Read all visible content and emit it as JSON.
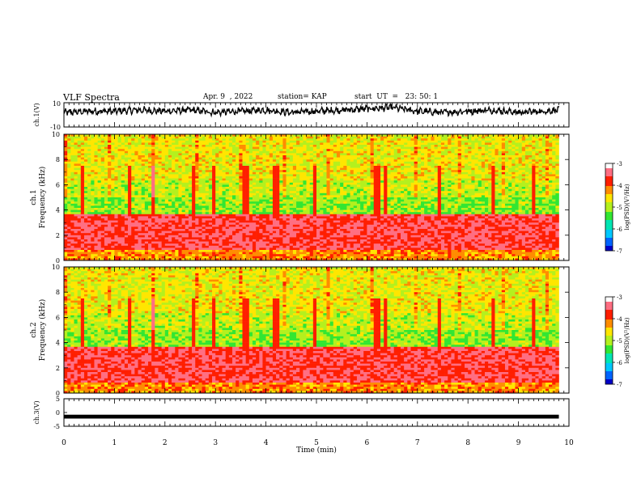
{
  "header": {
    "title": "VLF Spectra",
    "date": "Apr. 9  , 2022",
    "station": "station= KAP",
    "start_ut": "start  UT  =   23: 50: 1"
  },
  "colors": {
    "spectrogram_colormap": [
      "#0000c8",
      "#0064ff",
      "#00c8ff",
      "#00e6b4",
      "#32e632",
      "#b4f01e",
      "#ffe600",
      "#ff8c00",
      "#ff1e00",
      "#ff6e82",
      "#ffffff"
    ],
    "trace": "#000000",
    "frame": "#000000"
  },
  "chart_data": [
    {
      "type": "line",
      "name": "ch1-waveform",
      "ylabel": "ch.1(V)",
      "ylim": [
        -10,
        10
      ],
      "y_ticks": [
        "10",
        "-10"
      ],
      "xlim": [
        0,
        10
      ],
      "x": [
        0.0,
        0.5,
        1.0,
        1.5,
        2.0,
        2.5,
        3.0,
        3.5,
        4.0,
        4.5,
        5.0,
        5.5,
        6.0,
        6.5,
        7.0,
        7.5,
        8.0,
        8.5,
        9.0,
        9.5,
        9.8
      ],
      "y": [
        2,
        3,
        3,
        4,
        3,
        4,
        2,
        3,
        4,
        2,
        3,
        4,
        5,
        6,
        3,
        2,
        3,
        4,
        2,
        3,
        4
      ]
    },
    {
      "type": "heatmap",
      "name": "ch1-spectrogram",
      "ylabel_line1": "ch.1",
      "ylabel_line2": "Frequency (kHz)",
      "xlim": [
        0,
        10
      ],
      "ylim": [
        0,
        10
      ],
      "y_ticks": [
        "0",
        "2",
        "4",
        "6",
        "8",
        "10"
      ],
      "colorbar": {
        "label": "log(PSD)(V²/Hz)",
        "range": [
          -7,
          -3
        ],
        "ticks": [
          "-3",
          "-4",
          "-5",
          "-6",
          "-7"
        ]
      },
      "bands_khz": [
        {
          "from": 0.0,
          "to": 0.9,
          "level": -4.2
        },
        {
          "from": 0.9,
          "to": 3.6,
          "level": -3.6
        },
        {
          "from": 3.6,
          "to": 5.0,
          "level": -5.1
        },
        {
          "from": 5.0,
          "to": 6.4,
          "level": -4.9
        },
        {
          "from": 6.4,
          "to": 10.0,
          "level": -4.7
        }
      ],
      "bursts_min": [
        0.35,
        1.3,
        1.75,
        2.55,
        2.95,
        3.6,
        4.2,
        4.95,
        6.2,
        6.35,
        7.45,
        8.5,
        9.3
      ]
    },
    {
      "type": "heatmap",
      "name": "ch2-spectrogram",
      "ylabel_line1": "ch.2",
      "ylabel_line2": "Frequency (kHz)",
      "xlim": [
        0,
        10
      ],
      "ylim": [
        0,
        10
      ],
      "y_ticks": [
        "0",
        "2",
        "4",
        "6",
        "8",
        "10"
      ],
      "colorbar": {
        "label": "log(PSD)(V²/Hz)",
        "range": [
          -7,
          -3
        ],
        "ticks": [
          "-3",
          "-4",
          "-5",
          "-6",
          "-7"
        ]
      },
      "bands_khz": [
        {
          "from": 0.0,
          "to": 0.9,
          "level": -4.2
        },
        {
          "from": 0.9,
          "to": 3.6,
          "level": -3.6
        },
        {
          "from": 3.6,
          "to": 5.0,
          "level": -5.1
        },
        {
          "from": 5.0,
          "to": 6.4,
          "level": -4.9
        },
        {
          "from": 6.4,
          "to": 10.0,
          "level": -4.7
        }
      ],
      "bursts_min": [
        0.35,
        1.3,
        1.75,
        2.55,
        2.95,
        3.6,
        4.2,
        4.95,
        6.2,
        6.35,
        7.45,
        8.5,
        9.3
      ]
    },
    {
      "type": "line",
      "name": "ch3-waveform",
      "ylabel": "ch.3(V)",
      "ylim": [
        -5,
        5
      ],
      "y_ticks": [
        "5",
        "0",
        "-5"
      ],
      "xlim": [
        0,
        10
      ],
      "xlabel": "Time  (min)",
      "x_ticks": [
        "0",
        "1",
        "2",
        "3",
        "4",
        "5",
        "6",
        "7",
        "8",
        "9",
        "10"
      ],
      "x": [
        0.0,
        9.8
      ],
      "y": [
        -1.5,
        -1.5
      ],
      "y_spread": [
        -2.2,
        -0.8
      ]
    }
  ]
}
